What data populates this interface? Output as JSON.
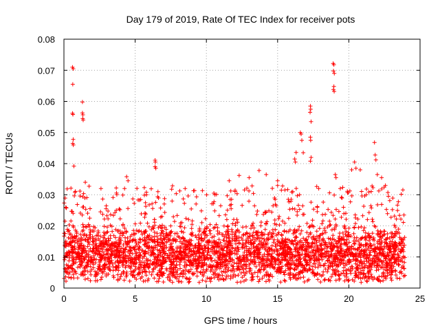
{
  "chart_data": {
    "type": "scatter",
    "title": "Day 179 of 2019, Rate Of TEC Index for receiver pots",
    "xlabel": "GPS time / hours",
    "ylabel": "ROTI / TECUs",
    "xlim": [
      0,
      25
    ],
    "ylim": [
      0,
      0.08
    ],
    "xticks": [
      0,
      5,
      10,
      15,
      20,
      25
    ],
    "xtick_labels": [
      "0",
      "5",
      "10",
      "15",
      "20",
      "25"
    ],
    "yticks": [
      0,
      0.01,
      0.02,
      0.03,
      0.04,
      0.05,
      0.06,
      0.07,
      0.08
    ],
    "ytick_labels": [
      "0",
      "0.01",
      "0.02",
      "0.03",
      "0.04",
      "0.05",
      "0.06",
      "0.07",
      "0.08"
    ],
    "grid": true,
    "marker": "+",
    "color": "#ff0000",
    "x_data_range": [
      0,
      23.95
    ],
    "bulk_band": {
      "typical_min": 0.004,
      "typical_max": 0.022,
      "center": 0.011
    },
    "series": [
      {
        "name": "ROTI",
        "notable_points": [
          [
            0.6,
            0.071
          ],
          [
            0.65,
            0.0705
          ],
          [
            0.62,
            0.0655
          ],
          [
            0.6,
            0.0562
          ],
          [
            0.63,
            0.0558
          ],
          [
            0.65,
            0.0478
          ],
          [
            0.62,
            0.0465
          ],
          [
            0.66,
            0.046
          ],
          [
            0.7,
            0.0392
          ],
          [
            1.3,
            0.0598
          ],
          [
            1.3,
            0.0563
          ],
          [
            1.33,
            0.0557
          ],
          [
            1.32,
            0.0545
          ],
          [
            1.35,
            0.054
          ],
          [
            6.4,
            0.0411
          ],
          [
            6.42,
            0.0405
          ],
          [
            6.4,
            0.039
          ],
          [
            6.45,
            0.0385
          ],
          [
            16.3,
            0.0436
          ],
          [
            16.2,
            0.0415
          ],
          [
            16.25,
            0.0405
          ],
          [
            16.6,
            0.05
          ],
          [
            16.65,
            0.0495
          ],
          [
            16.7,
            0.0475
          ],
          [
            16.8,
            0.0435
          ],
          [
            17.3,
            0.0585
          ],
          [
            17.32,
            0.0575
          ],
          [
            17.28,
            0.0565
          ],
          [
            17.35,
            0.0535
          ],
          [
            17.3,
            0.0485
          ],
          [
            17.32,
            0.0475
          ],
          [
            17.35,
            0.042
          ],
          [
            17.3,
            0.0408
          ],
          [
            18.9,
            0.0722
          ],
          [
            18.95,
            0.0718
          ],
          [
            18.92,
            0.0698
          ],
          [
            18.98,
            0.069
          ],
          [
            18.95,
            0.0648
          ],
          [
            18.92,
            0.0638
          ],
          [
            18.97,
            0.0632
          ],
          [
            19.05,
            0.0365
          ],
          [
            19.1,
            0.0355
          ],
          [
            21.8,
            0.0468
          ],
          [
            21.85,
            0.0428
          ],
          [
            21.9,
            0.0412
          ],
          [
            20.4,
            0.0405
          ],
          [
            20.5,
            0.0385
          ],
          [
            20.2,
            0.038
          ],
          [
            4.4,
            0.0358
          ],
          [
            4.5,
            0.0345
          ],
          [
            13.7,
            0.0378
          ],
          [
            14.2,
            0.0365
          ],
          [
            12.3,
            0.0362
          ],
          [
            11.6,
            0.0345
          ],
          [
            15.0,
            0.0345
          ],
          [
            13.0,
            0.0355
          ],
          [
            22.0,
            0.0365
          ],
          [
            22.3,
            0.0355
          ],
          [
            20.8,
            0.038
          ],
          [
            1.5,
            0.034
          ],
          [
            2.6,
            0.032
          ],
          [
            6.6,
            0.031
          ],
          [
            10.6,
            0.03
          ],
          [
            19.4,
            0.032
          ]
        ]
      }
    ]
  }
}
